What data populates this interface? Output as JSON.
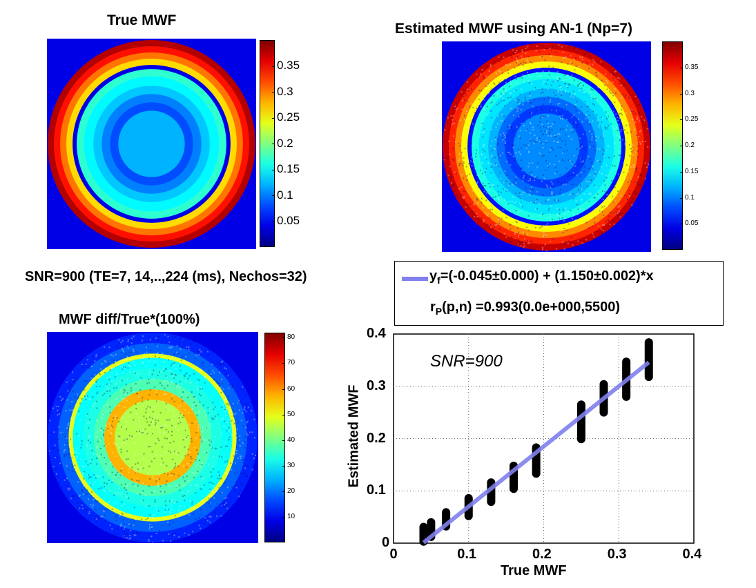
{
  "panels": {
    "true_mwf": {
      "title": "True MWF",
      "colorbar": {
        "min": 0,
        "max": 0.4,
        "ticks": [
          "0.05",
          "0.1",
          "0.15",
          "0.2",
          "0.25",
          "0.3",
          "0.35"
        ]
      }
    },
    "estimated_mwf": {
      "title": "Estimated MWF using AN-1 (Np=7)",
      "colorbar": {
        "min": 0,
        "max": 0.4,
        "ticks": [
          "0.05",
          "0.1",
          "0.15",
          "0.2",
          "0.25",
          "0.3",
          "0.35"
        ]
      }
    },
    "diff": {
      "title": "MWF diff/True*(100%)",
      "colorbar": {
        "min": 0,
        "max": 82,
        "ticks": [
          "10",
          "20",
          "30",
          "40",
          "50",
          "60",
          "70",
          "80"
        ]
      }
    }
  },
  "snr_caption": "SNR=900 (TE=7, 14,..,224 (ms), Nechos=32)",
  "legend": {
    "fit_prefix": "y",
    "fit_sub": "f",
    "fit_text": "=(-0.045±0.000) + (1.150±0.002)*x",
    "corr_prefix": "r",
    "corr_sub": "P",
    "corr_text": "(p,n) =0.993(0.0e+000,5500)",
    "fit_color": "#8080ee"
  },
  "chart_data": {
    "type": "scatter",
    "annotation": "SNR=900",
    "xlabel": "True MWF",
    "ylabel": "Estimated MWF",
    "xlim": [
      0,
      0.4
    ],
    "ylim": [
      0,
      0.4
    ],
    "xticks": [
      "0",
      "0.1",
      "0.2",
      "0.3",
      "0.4"
    ],
    "yticks": [
      "0",
      "0.1",
      "0.2",
      "0.3",
      "0.4"
    ],
    "grid": true,
    "fit_line": {
      "intercept": -0.045,
      "slope": 1.15,
      "x_range": [
        0.04,
        0.34
      ]
    },
    "clusters": [
      {
        "x": 0.04,
        "y_min": 0.003,
        "y_max": 0.031
      },
      {
        "x": 0.05,
        "y_min": 0.012,
        "y_max": 0.04
      },
      {
        "x": 0.07,
        "y_min": 0.032,
        "y_max": 0.059
      },
      {
        "x": 0.1,
        "y_min": 0.052,
        "y_max": 0.086
      },
      {
        "x": 0.13,
        "y_min": 0.079,
        "y_max": 0.116
      },
      {
        "x": 0.16,
        "y_min": 0.104,
        "y_max": 0.148
      },
      {
        "x": 0.19,
        "y_min": 0.133,
        "y_max": 0.183
      },
      {
        "x": 0.25,
        "y_min": 0.199,
        "y_max": 0.265
      },
      {
        "x": 0.28,
        "y_min": 0.25,
        "y_max": 0.304
      },
      {
        "x": 0.31,
        "y_min": 0.28,
        "y_max": 0.347
      },
      {
        "x": 0.34,
        "y_min": 0.318,
        "y_max": 0.384
      }
    ],
    "marker_color": "#000000"
  }
}
